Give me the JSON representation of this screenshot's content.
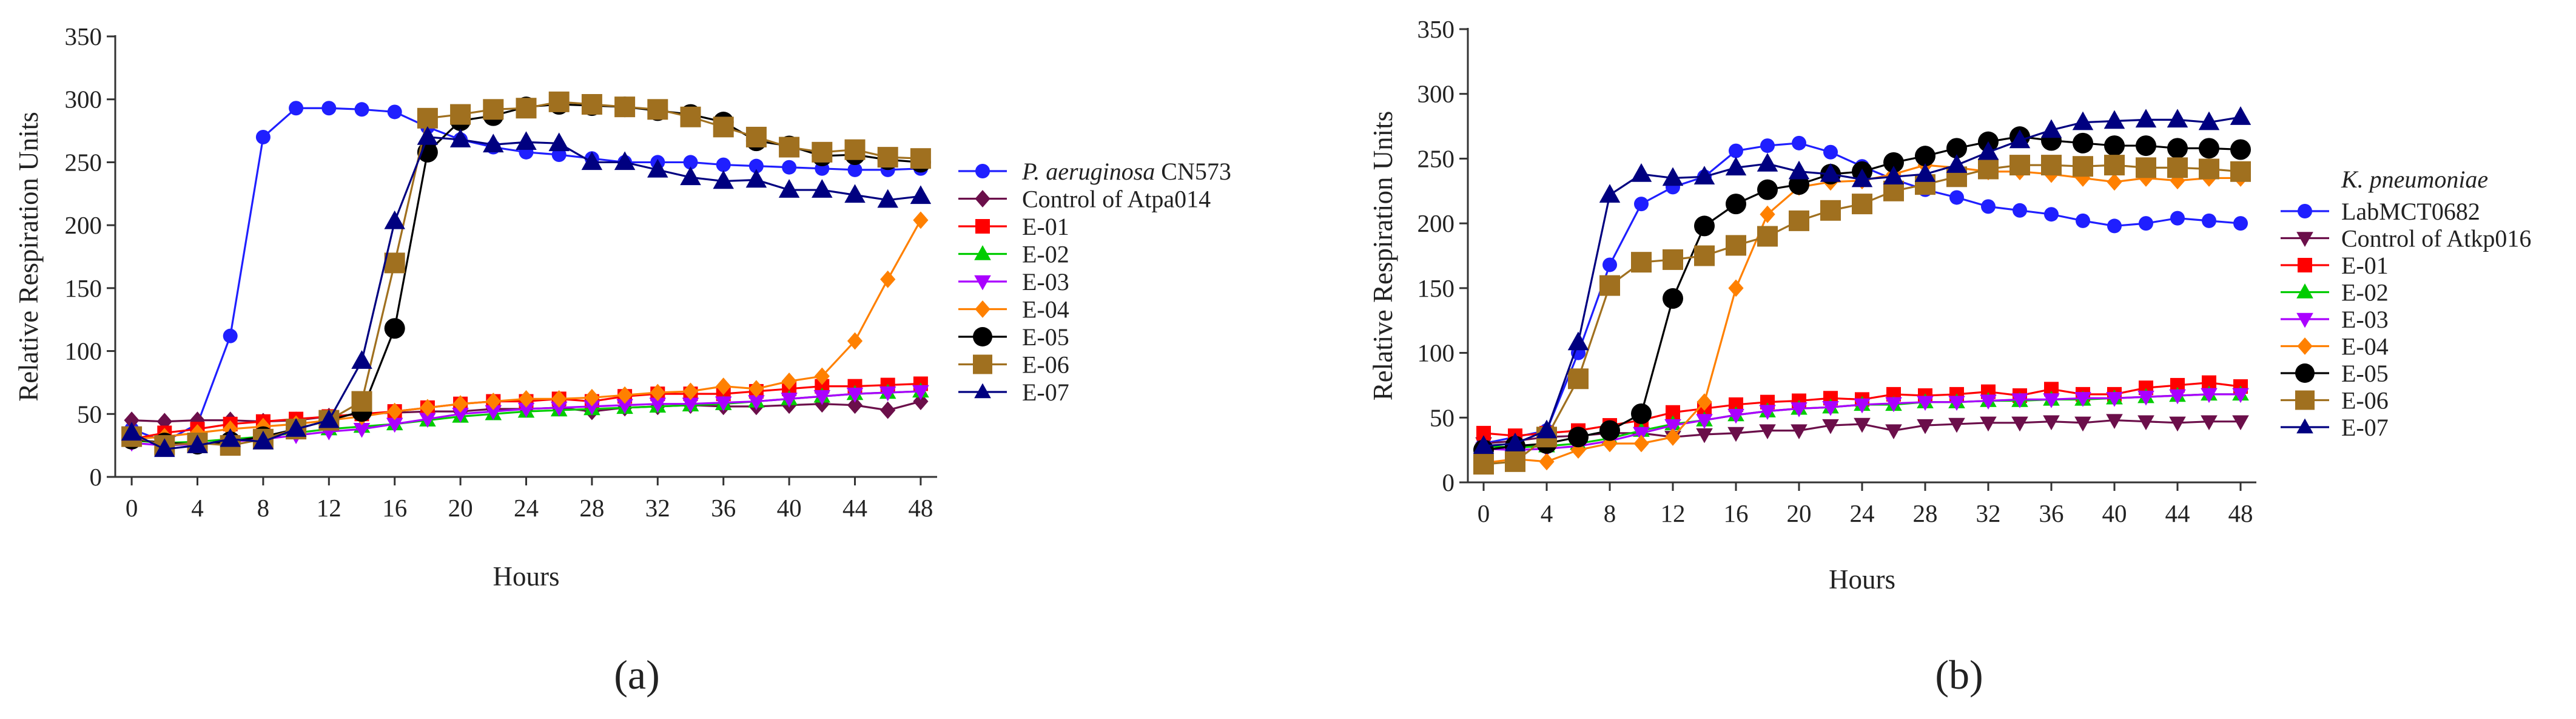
{
  "chart_data": [
    {
      "type": "line",
      "panel_label": "(a)",
      "title": "",
      "xlabel": "Hours",
      "ylabel": "Relative Respiration Units",
      "xlim": [
        -1,
        49
      ],
      "ylim": [
        0,
        350
      ],
      "xticks": [
        0,
        4,
        8,
        12,
        16,
        20,
        24,
        28,
        32,
        36,
        40,
        44,
        48
      ],
      "yticks": [
        0,
        50,
        100,
        150,
        200,
        250,
        300,
        350
      ],
      "legend_position": "right",
      "x": [
        0,
        2,
        4,
        6,
        8,
        10,
        12,
        14,
        16,
        18,
        20,
        22,
        24,
        26,
        28,
        30,
        32,
        34,
        36,
        38,
        40,
        42,
        44,
        46,
        48
      ],
      "series": [
        {
          "name": "P. aeruginosa CN573",
          "name_italic": "P. aeruginosa",
          "name_rest": " CN573",
          "color": "#1f1fff",
          "marker": "circle",
          "values": [
            38,
            28,
            42,
            112,
            270,
            293,
            293,
            292,
            290,
            278,
            268,
            262,
            258,
            256,
            253,
            250,
            250,
            250,
            248,
            247,
            246,
            245,
            244,
            244,
            245
          ]
        },
        {
          "name": "Control of Atpa014",
          "color": "#6b0f4a",
          "marker": "diamond",
          "values": [
            45,
            44,
            45,
            45,
            44,
            45,
            48,
            50,
            51,
            52,
            52,
            54,
            54,
            55,
            52,
            55,
            56,
            57,
            56,
            56,
            57,
            58,
            57,
            53,
            60
          ]
        },
        {
          "name": "E-01",
          "color": "#ff0000",
          "marker": "square",
          "values": [
            30,
            35,
            38,
            42,
            44,
            46,
            48,
            50,
            52,
            55,
            58,
            60,
            60,
            62,
            60,
            64,
            66,
            66,
            66,
            68,
            70,
            72,
            72,
            73,
            74
          ]
        },
        {
          "name": "E-02",
          "color": "#00cc00",
          "marker": "triangle-up",
          "values": [
            29,
            27,
            28,
            30,
            32,
            35,
            38,
            40,
            42,
            45,
            48,
            50,
            52,
            53,
            54,
            55,
            56,
            57,
            58,
            60,
            62,
            64,
            66,
            67,
            68
          ]
        },
        {
          "name": "E-03",
          "color": "#aa00ff",
          "marker": "triangle-down",
          "values": [
            27,
            25,
            26,
            28,
            30,
            33,
            36,
            38,
            42,
            46,
            50,
            52,
            54,
            55,
            56,
            57,
            58,
            58,
            59,
            60,
            62,
            64,
            66,
            67,
            68
          ]
        },
        {
          "name": "E-04",
          "color": "#ff8000",
          "marker": "diamond",
          "values": [
            30,
            32,
            35,
            38,
            40,
            42,
            45,
            48,
            52,
            55,
            58,
            60,
            62,
            62,
            63,
            65,
            67,
            68,
            72,
            70,
            76,
            80,
            108,
            157,
            204
          ]
        },
        {
          "name": "E-05",
          "color": "#000000",
          "marker": "circle",
          "values": [
            30,
            27,
            26,
            28,
            32,
            38,
            45,
            52,
            118,
            258,
            283,
            287,
            294,
            296,
            295,
            294,
            291,
            288,
            282,
            267,
            263,
            255,
            256,
            252,
            250
          ]
        },
        {
          "name": "E-06",
          "color": "#a0701f",
          "marker": "square",
          "values": [
            32,
            25,
            27,
            25,
            30,
            38,
            45,
            60,
            170,
            285,
            288,
            292,
            293,
            298,
            296,
            294,
            292,
            286,
            278,
            270,
            262,
            258,
            260,
            254,
            253
          ]
        },
        {
          "name": "E-07",
          "color": "#000080",
          "marker": "triangle-up",
          "values": [
            35,
            22,
            25,
            30,
            28,
            38,
            45,
            92,
            203,
            270,
            268,
            264,
            266,
            265,
            250,
            250,
            244,
            238,
            235,
            236,
            228,
            228,
            224,
            220,
            223
          ]
        }
      ]
    },
    {
      "type": "line",
      "panel_label": "(b)",
      "title": "",
      "xlabel": "Hours",
      "ylabel": "Relative Respiration Units",
      "xlim": [
        -1,
        49
      ],
      "ylim": [
        0,
        350
      ],
      "xticks": [
        0,
        4,
        8,
        12,
        16,
        20,
        24,
        28,
        32,
        36,
        40,
        44,
        48
      ],
      "yticks": [
        0,
        50,
        100,
        150,
        200,
        250,
        300,
        350
      ],
      "legend_position": "right",
      "legend_header": "K. pneumoniae",
      "x": [
        0,
        2,
        4,
        6,
        8,
        10,
        12,
        14,
        16,
        18,
        20,
        22,
        24,
        26,
        28,
        30,
        32,
        34,
        36,
        38,
        40,
        42,
        44,
        46,
        48
      ],
      "series": [
        {
          "name": "LabMCT0682",
          "color": "#1f1fff",
          "marker": "circle",
          "values": [
            30,
            35,
            40,
            100,
            168,
            215,
            228,
            236,
            256,
            260,
            262,
            255,
            244,
            234,
            226,
            220,
            213,
            210,
            207,
            202,
            198,
            200,
            204,
            202,
            200
          ]
        },
        {
          "name": "Control of Atkp016",
          "color": "#6b0f4a",
          "marker": "triangle-down",
          "values": [
            30,
            32,
            35,
            36,
            38,
            38,
            35,
            37,
            38,
            40,
            40,
            44,
            45,
            40,
            44,
            45,
            46,
            46,
            47,
            46,
            48,
            47,
            46,
            47,
            47
          ]
        },
        {
          "name": "E-01",
          "color": "#ff0000",
          "marker": "square",
          "values": [
            38,
            36,
            38,
            40,
            44,
            48,
            54,
            57,
            60,
            62,
            63,
            65,
            64,
            68,
            67,
            68,
            70,
            67,
            72,
            68,
            68,
            73,
            75,
            77,
            74
          ]
        },
        {
          "name": "E-02",
          "color": "#00cc00",
          "marker": "triangle-up",
          "values": [
            28,
            27,
            28,
            30,
            34,
            40,
            45,
            48,
            52,
            55,
            57,
            58,
            60,
            60,
            62,
            62,
            63,
            63,
            64,
            64,
            65,
            66,
            67,
            68,
            68
          ]
        },
        {
          "name": "E-03",
          "color": "#aa00ff",
          "marker": "triangle-down",
          "values": [
            26,
            25,
            26,
            28,
            32,
            38,
            44,
            48,
            52,
            55,
            57,
            58,
            60,
            61,
            62,
            62,
            63,
            64,
            64,
            65,
            65,
            66,
            67,
            68,
            68
          ]
        },
        {
          "name": "E-04",
          "color": "#ff8000",
          "marker": "diamond",
          "values": [
            15,
            18,
            16,
            25,
            30,
            30,
            35,
            62,
            150,
            207,
            228,
            232,
            233,
            238,
            245,
            243,
            240,
            240,
            238,
            235,
            232,
            235,
            233,
            235,
            235
          ]
        },
        {
          "name": "E-05",
          "color": "#000000",
          "marker": "circle",
          "values": [
            25,
            28,
            30,
            35,
            40,
            53,
            142,
            198,
            215,
            226,
            230,
            238,
            240,
            247,
            252,
            258,
            263,
            267,
            264,
            262,
            260,
            260,
            258,
            258,
            257
          ]
        },
        {
          "name": "E-06",
          "color": "#a0701f",
          "marker": "square",
          "values": [
            14,
            16,
            35,
            80,
            152,
            170,
            172,
            175,
            183,
            190,
            202,
            210,
            215,
            225,
            230,
            236,
            242,
            245,
            245,
            244,
            245,
            243,
            243,
            242,
            240
          ]
        },
        {
          "name": "E-07",
          "color": "#000080",
          "marker": "triangle-up",
          "values": [
            28,
            30,
            40,
            108,
            222,
            238,
            235,
            236,
            243,
            246,
            240,
            238,
            234,
            236,
            238,
            245,
            255,
            264,
            272,
            278,
            279,
            280,
            280,
            278,
            282
          ]
        }
      ]
    }
  ]
}
